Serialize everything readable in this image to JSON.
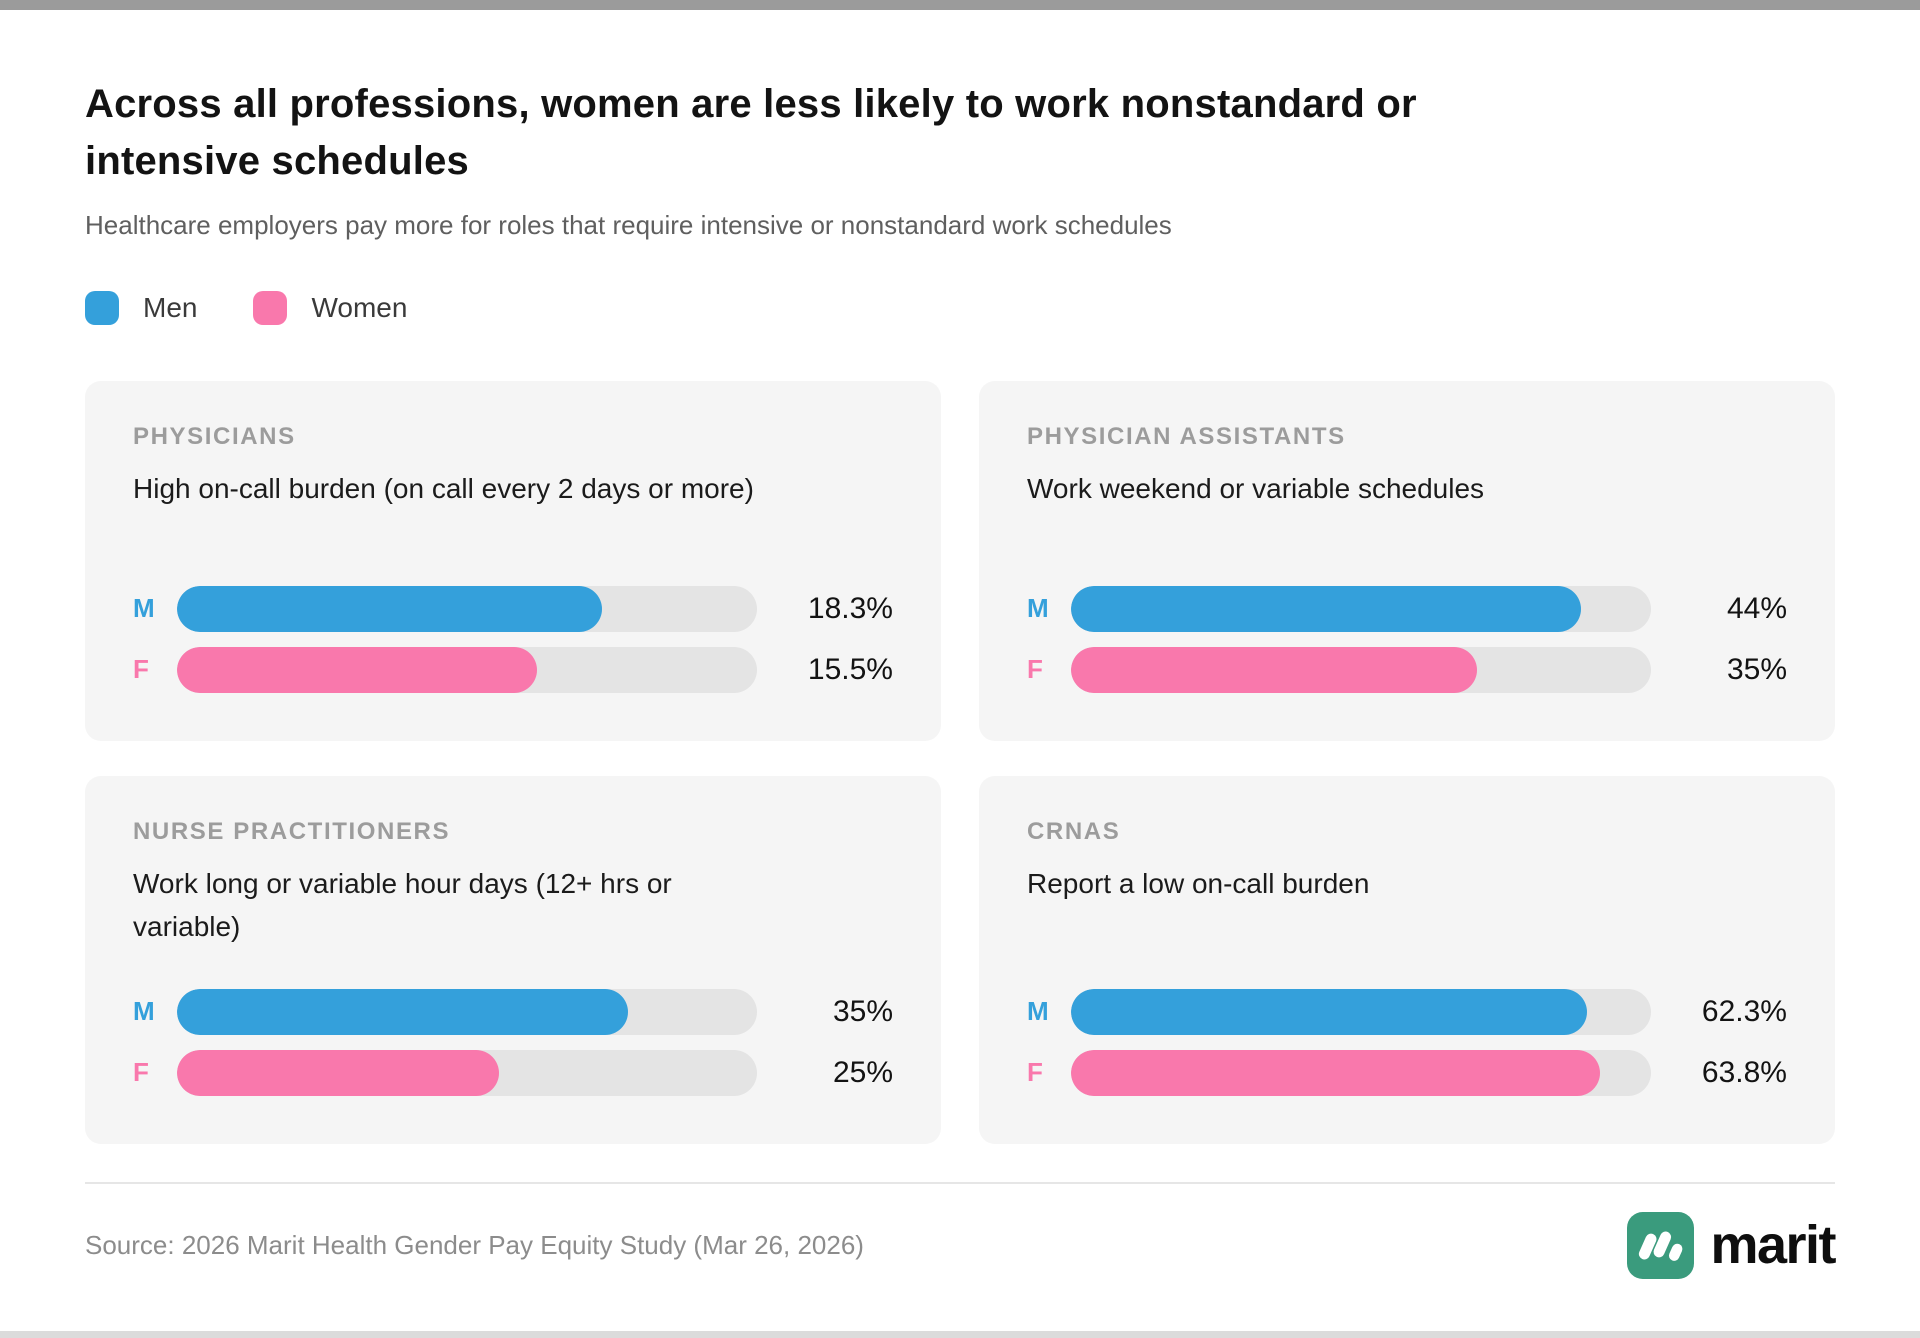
{
  "page": {
    "title": "Across all professions, women are less likely to work nonstandard or intensive schedules",
    "subtitle": "Healthcare employers pay more for roles that require intensive or nonstandard work schedules",
    "source": "Source: 2026 Marit Health Gender Pay Equity Study (Mar 26, 2026)",
    "brand_name": "marit"
  },
  "colors": {
    "men": "#34a0db",
    "women": "#f978ac",
    "track": "#e4e4e4",
    "card_bg": "#f5f5f5",
    "brand_teal": "#3a9b7d"
  },
  "legend": [
    {
      "label": "Men",
      "color": "#34a0db"
    },
    {
      "label": "Women",
      "color": "#f978ac"
    }
  ],
  "chart_data": [
    {
      "type": "bar",
      "kicker": "PHYSICIANS",
      "title": "High on-call burden (on call every 2 days or more)",
      "categories": [
        "M",
        "F"
      ],
      "unit": "%",
      "axis_max": 25,
      "series": [
        {
          "name": "Men",
          "label": "M",
          "value": 18.3,
          "display": "18.3%",
          "color": "#34a0db"
        },
        {
          "name": "Women",
          "label": "F",
          "value": 15.5,
          "display": "15.5%",
          "color": "#f978ac"
        }
      ]
    },
    {
      "type": "bar",
      "kicker": "PHYSICIAN ASSISTANTS",
      "title": "Work weekend or variable schedules",
      "categories": [
        "M",
        "F"
      ],
      "unit": "%",
      "axis_max": 50,
      "series": [
        {
          "name": "Men",
          "label": "M",
          "value": 44,
          "display": "44%",
          "color": "#34a0db"
        },
        {
          "name": "Women",
          "label": "F",
          "value": 35,
          "display": "35%",
          "color": "#f978ac"
        }
      ]
    },
    {
      "type": "bar",
      "kicker": "NURSE PRACTITIONERS",
      "title": "Work long or variable hour days (12+ hrs or variable)",
      "categories": [
        "M",
        "F"
      ],
      "unit": "%",
      "axis_max": 45,
      "series": [
        {
          "name": "Men",
          "label": "M",
          "value": 35,
          "display": "35%",
          "color": "#34a0db"
        },
        {
          "name": "Women",
          "label": "F",
          "value": 25,
          "display": "25%",
          "color": "#f978ac"
        }
      ]
    },
    {
      "type": "bar",
      "kicker": "CRNAS",
      "title": "Report a low on-call burden",
      "categories": [
        "M",
        "F"
      ],
      "unit": "%",
      "axis_max": 70,
      "series": [
        {
          "name": "Men",
          "label": "M",
          "value": 62.3,
          "display": "62.3%",
          "color": "#34a0db"
        },
        {
          "name": "Women",
          "label": "F",
          "value": 63.8,
          "display": "63.8%",
          "color": "#f978ac"
        }
      ]
    }
  ]
}
